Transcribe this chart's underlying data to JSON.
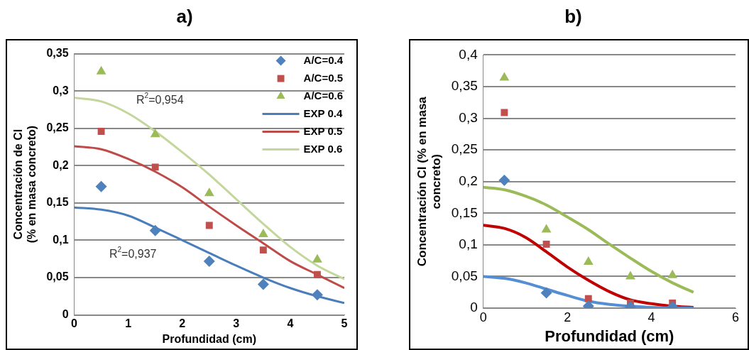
{
  "chart_data": [
    {
      "type": "scatter",
      "title": "a)",
      "xlabel": "Profundidad (cm)",
      "ylabel": "Concentración de Cl\n(% en masa concreto)",
      "xlim": [
        0,
        5
      ],
      "xticks": [
        0,
        1,
        2,
        3,
        4,
        5
      ],
      "ylim": [
        0,
        0.35
      ],
      "yticks": [
        0,
        {
          "value": 0.05,
          "label": "0,05"
        },
        {
          "value": 0.1,
          "label": "0,1"
        },
        {
          "value": 0.15,
          "label": "0,15"
        },
        {
          "value": 0.2,
          "label": "0,2"
        },
        {
          "value": 0.25,
          "label": "0,25"
        },
        {
          "value": 0.3,
          "label": "0,3"
        },
        {
          "value": 0.35,
          "label": "0,35"
        }
      ],
      "grid": "y",
      "legend": "top right",
      "x": [
        0.5,
        1.5,
        2.5,
        3.5,
        4.5
      ],
      "series": [
        {
          "name": "A/C=0.4",
          "type": "scatter",
          "marker": "diamond",
          "color": "#4f81bd",
          "values": [
            0.172,
            0.113,
            0.072,
            0.041,
            0.027
          ]
        },
        {
          "name": "A/C=0.5",
          "type": "scatter",
          "marker": "square",
          "color": "#c0504d",
          "values": [
            0.246,
            0.198,
            0.12,
            0.087,
            0.054
          ]
        },
        {
          "name": "A/C=0.6",
          "type": "scatter",
          "marker": "triangle",
          "color": "#9bbb59",
          "values": [
            0.326,
            0.242,
            0.163,
            0.108,
            0.074
          ]
        },
        {
          "name": "EXP 0.4",
          "type": "line",
          "marker": "none",
          "color": "#4a7ebb",
          "x": [
            0,
            0.5,
            1,
            1.5,
            2,
            2.5,
            3,
            3.5,
            4,
            4.5,
            5
          ],
          "values": [
            0.144,
            0.141,
            0.133,
            0.117,
            0.1,
            0.083,
            0.066,
            0.05,
            0.036,
            0.025,
            0.016
          ]
        },
        {
          "name": "EXP 0.5",
          "type": "line",
          "marker": "none",
          "color": "#be4b48",
          "x": [
            0,
            0.5,
            1,
            1.5,
            2,
            2.5,
            3,
            3.5,
            4,
            4.5,
            5
          ],
          "values": [
            0.226,
            0.222,
            0.209,
            0.192,
            0.171,
            0.145,
            0.12,
            0.096,
            0.072,
            0.054,
            0.036
          ]
        },
        {
          "name": "EXP 0.6",
          "type": "line",
          "marker": "none",
          "color": "#c3d69b",
          "x": [
            0,
            0.5,
            1,
            1.5,
            2,
            2.5,
            3,
            3.5,
            4,
            4.5,
            5
          ],
          "values": [
            0.291,
            0.286,
            0.27,
            0.246,
            0.218,
            0.188,
            0.155,
            0.122,
            0.091,
            0.066,
            0.048
          ]
        }
      ],
      "annotations": [
        "R$^{2}$=0,954",
        "R$^{2}$=0,937"
      ]
    },
    {
      "type": "scatter",
      "title": "b)",
      "xlabel": "Profundidad (cm)",
      "ylabel": "Concentración Cl (% en masa\nconcreto)",
      "xlim": [
        0,
        6
      ],
      "xticks": [
        0,
        2,
        4,
        6
      ],
      "ylim": [
        0,
        0.4
      ],
      "yticks": [
        0,
        {
          "value": 0.05,
          "label": "0,05"
        },
        {
          "value": 0.1,
          "label": "0,1"
        },
        {
          "value": 0.15,
          "label": "0,15"
        },
        {
          "value": 0.2,
          "label": "0,2"
        },
        {
          "value": 0.25,
          "label": "0,25"
        },
        {
          "value": 0.3,
          "label": "0,3"
        },
        {
          "value": 0.35,
          "label": "0,35"
        },
        {
          "value": 0.4,
          "label": "0,4"
        }
      ],
      "grid": "y",
      "x": [
        0.5,
        1.5,
        2.5,
        3.5,
        4.5
      ],
      "series": [
        {
          "type": "scatter",
          "marker": "diamond",
          "color": "#4f81bd",
          "values": [
            0.202,
            0.024,
            0.003,
            0.002,
            0.002
          ]
        },
        {
          "type": "scatter",
          "marker": "square",
          "color": "#c0504d",
          "values": [
            0.309,
            0.101,
            0.015,
            0.008,
            0.008
          ]
        },
        {
          "type": "scatter",
          "marker": "triangle",
          "color": "#9bbb59",
          "values": [
            0.364,
            0.124,
            0.073,
            0.05,
            0.052
          ]
        },
        {
          "type": "line",
          "marker": "none",
          "color": "#558ed5",
          "x": [
            0,
            0.5,
            1,
            1.5,
            2,
            2.5,
            3,
            3.5,
            4,
            5
          ],
          "values": [
            0.05,
            0.047,
            0.04,
            0.03,
            0.02,
            0.011,
            0.006,
            0.003,
            0.001,
            0
          ]
        },
        {
          "type": "line",
          "marker": "none",
          "color": "#c00000",
          "x": [
            0,
            0.5,
            1,
            1.5,
            2,
            2.5,
            3,
            3.5,
            4,
            4.5,
            5
          ],
          "values": [
            0.131,
            0.126,
            0.112,
            0.089,
            0.065,
            0.044,
            0.026,
            0.013,
            0.007,
            0.003,
            0.001
          ]
        },
        {
          "type": "line",
          "marker": "none",
          "color": "#9bbb59",
          "x": [
            0,
            0.5,
            1,
            1.5,
            2,
            2.5,
            3,
            3.5,
            4,
            4.5,
            5
          ],
          "values": [
            0.191,
            0.187,
            0.177,
            0.163,
            0.144,
            0.124,
            0.101,
            0.079,
            0.058,
            0.04,
            0.025
          ]
        }
      ]
    }
  ]
}
